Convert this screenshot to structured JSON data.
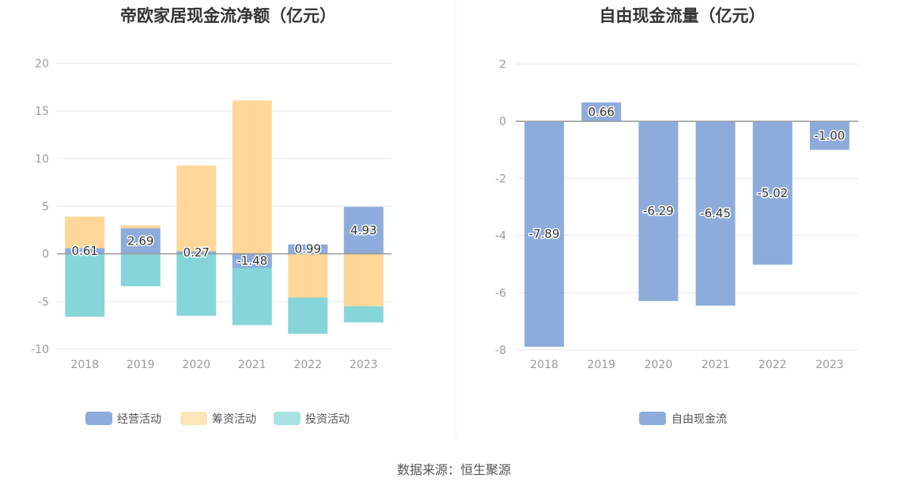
{
  "colors": {
    "operating": "#8eacdb",
    "financing": "#ffd899",
    "investing": "#86d5d9",
    "free_cash_flow": "#8eacdb",
    "grid": "#e6e6ee",
    "axis_text": "#999999"
  },
  "source": "数据来源：恒生聚源",
  "chart_data": [
    {
      "type": "bar",
      "stacked": true,
      "title": "帝欧家居现金流净额（亿元）",
      "categories": [
        "2018",
        "2019",
        "2020",
        "2021",
        "2022",
        "2023"
      ],
      "ylim": [
        -10,
        20
      ],
      "yticks": [
        20,
        15,
        10,
        5,
        0,
        -5,
        -10
      ],
      "grid": true,
      "legend_position": "bottom",
      "series": [
        {
          "name": "经营活动",
          "values": [
            0.61,
            2.69,
            0.27,
            -1.48,
            0.99,
            4.93
          ],
          "labels": [
            "0.61",
            "2.69",
            "0.27",
            "-1.48",
            "0.99",
            "4.93"
          ]
        },
        {
          "name": "筹资活动",
          "values": [
            3.3,
            0.3,
            9.0,
            16.1,
            -4.6,
            -5.5
          ]
        },
        {
          "name": "投资活动",
          "values": [
            -6.6,
            -3.4,
            -6.5,
            -6.0,
            -3.8,
            -1.7
          ]
        }
      ]
    },
    {
      "type": "bar",
      "title": "自由现金流量（亿元）",
      "categories": [
        "2018",
        "2019",
        "2020",
        "2021",
        "2022",
        "2023"
      ],
      "ylim": [
        -8,
        2
      ],
      "yticks": [
        2,
        0,
        -2,
        -4,
        -6,
        -8
      ],
      "grid": true,
      "legend_position": "bottom",
      "series": [
        {
          "name": "自由现金流",
          "values": [
            -7.89,
            0.66,
            -6.29,
            -6.45,
            -5.02,
            -1.0
          ],
          "labels": [
            "-7.89",
            "0.66",
            "-6.29",
            "-6.45",
            "-5.02",
            "-1.00"
          ]
        }
      ]
    }
  ]
}
